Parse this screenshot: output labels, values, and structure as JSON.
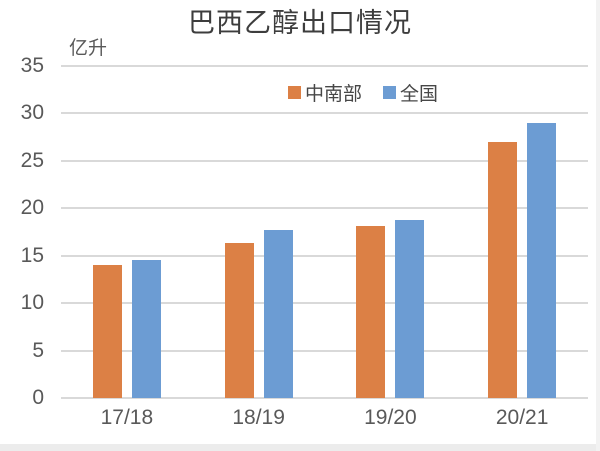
{
  "chart_data": {
    "type": "bar",
    "title": "巴西乙醇出口情况",
    "ylabel": "亿升",
    "xlabel": "",
    "categories": [
      "17/18",
      "18/19",
      "19/20",
      "20/21"
    ],
    "series": [
      {
        "name": "中南部",
        "color": "#DC8045",
        "values": [
          14.0,
          16.3,
          18.1,
          27.0
        ]
      },
      {
        "name": "全国",
        "color": "#6C9CD3",
        "values": [
          14.5,
          17.7,
          18.8,
          29.0
        ]
      }
    ],
    "ylim": [
      0,
      35
    ],
    "y_ticks": [
      35,
      30,
      25,
      20,
      15,
      10,
      5,
      0
    ],
    "grid": true,
    "legend_position": "top-inside",
    "gridline_color": "#D9D9D9",
    "axis_text_color": "#595959"
  }
}
